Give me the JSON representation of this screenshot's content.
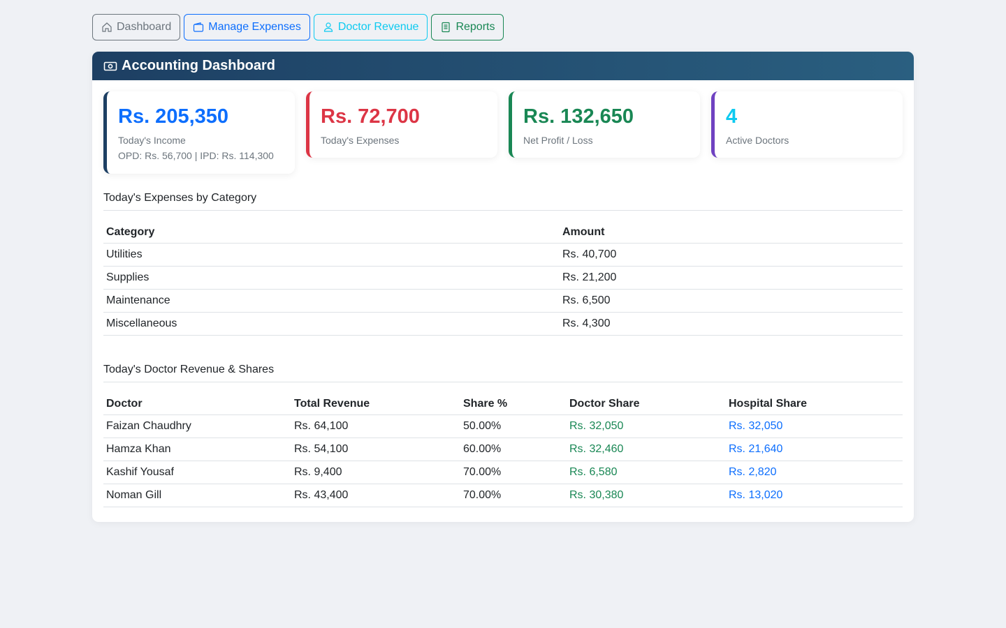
{
  "nav": {
    "dashboard": "Dashboard",
    "manage_expenses": "Manage Expenses",
    "doctor_revenue": "Doctor Revenue",
    "reports": "Reports"
  },
  "header": {
    "title": "Accounting Dashboard"
  },
  "stats": {
    "income": {
      "value": "Rs. 205,350",
      "label": "Today's Income",
      "sub": "OPD: Rs. 56,700 | IPD: Rs. 114,300"
    },
    "expenses": {
      "value": "Rs. 72,700",
      "label": "Today's Expenses"
    },
    "net": {
      "value": "Rs. 132,650",
      "label": "Net Profit / Loss"
    },
    "doctors": {
      "value": "4",
      "label": "Active Doctors"
    }
  },
  "expenses_section": {
    "title": "Today's Expenses by Category",
    "headers": [
      "Category",
      "Amount"
    ],
    "rows": [
      [
        "Utilities",
        "Rs. 40,700"
      ],
      [
        "Supplies",
        "Rs. 21,200"
      ],
      [
        "Maintenance",
        "Rs. 6,500"
      ],
      [
        "Miscellaneous",
        "Rs. 4,300"
      ]
    ]
  },
  "doctor_section": {
    "title": "Today's Doctor Revenue & Shares",
    "headers": [
      "Doctor",
      "Total Revenue",
      "Share %",
      "Doctor Share",
      "Hospital Share"
    ],
    "rows": [
      [
        "Faizan Chaudhry",
        "Rs. 64,100",
        "50.00%",
        "Rs. 32,050",
        "Rs. 32,050"
      ],
      [
        "Hamza Khan",
        "Rs. 54,100",
        "60.00%",
        "Rs. 32,460",
        "Rs. 21,640"
      ],
      [
        "Kashif Yousaf",
        "Rs. 9,400",
        "70.00%",
        "Rs. 6,580",
        "Rs. 2,820"
      ],
      [
        "Noman Gill",
        "Rs. 43,400",
        "70.00%",
        "Rs. 30,380",
        "Rs. 13,020"
      ]
    ]
  }
}
